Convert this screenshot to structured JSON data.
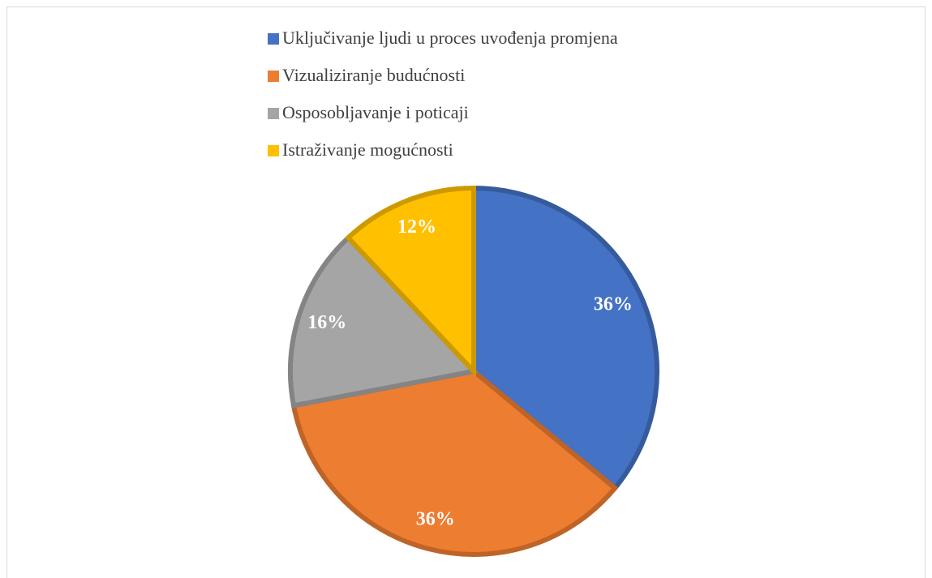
{
  "chart_data": {
    "type": "pie",
    "categories": [
      "Uključivanje ljudi u proces uvođenja promjena",
      "Vizualiziranje budućnosti",
      "Osposobljavanje i poticaji",
      "Istraživanje mogućnosti"
    ],
    "values": [
      36,
      36,
      16,
      12
    ],
    "value_labels": [
      "36%",
      "36%",
      "16%",
      "12%"
    ],
    "colors": [
      "#4472c4",
      "#ed7d31",
      "#a5a5a5",
      "#ffc000"
    ],
    "legend": "top"
  }
}
